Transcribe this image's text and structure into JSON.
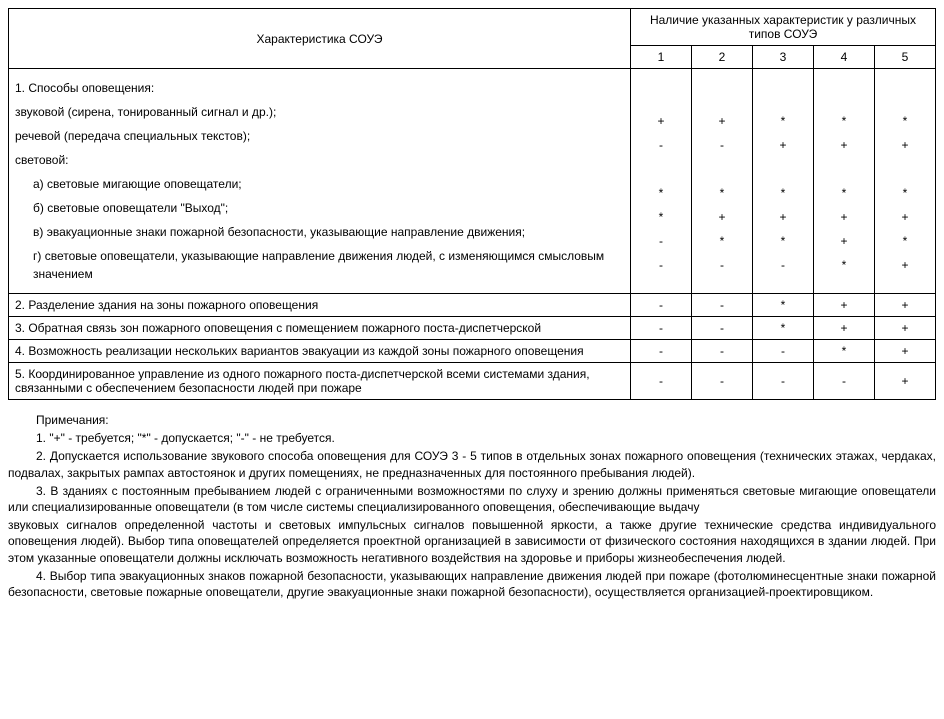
{
  "table": {
    "header_char": "Характеристика СОУЭ",
    "header_presence": "Наличие указанных характеристик у различных типов СОУЭ",
    "col_numbers": [
      "1",
      "2",
      "3",
      "4",
      "5"
    ],
    "row1_title": "1. Способы оповещения:",
    "row1_a": "звуковой (сирена, тонированный сигнал и др.);",
    "row1_a_vals": [
      "+",
      "+",
      "*",
      "*",
      "*"
    ],
    "row1_b": "речевой (передача специальных текстов);",
    "row1_b_vals": [
      "-",
      "-",
      "+",
      "+",
      "+"
    ],
    "row1_c": "световой:",
    "row1_c1": "а) световые мигающие оповещатели;",
    "row1_c1_vals": [
      "*",
      "*",
      "*",
      "*",
      "*"
    ],
    "row1_c2": "б) световые оповещатели \"Выход\";",
    "row1_c2_vals": [
      "*",
      "+",
      "+",
      "+",
      "+"
    ],
    "row1_c3": "в) эвакуационные знаки пожарной безопасности, указывающие направление движения;",
    "row1_c3_vals": [
      "-",
      "*",
      "*",
      "+",
      "*"
    ],
    "row1_c4": "г) световые оповещатели, указывающие направление движения людей, с изменяющимся смысловым значением",
    "row1_c4_vals": [
      "-",
      "-",
      "-",
      "*",
      "+"
    ],
    "row2": "2. Разделение здания на зоны пожарного оповещения",
    "row2_vals": [
      "-",
      "-",
      "*",
      "+",
      "+"
    ],
    "row3": "3. Обратная связь зон пожарного оповещения с помещением пожарного поста-диспетчерской",
    "row3_vals": [
      "-",
      "-",
      "*",
      "+",
      "+"
    ],
    "row4": "4. Возможность реализации нескольких вариантов эвакуации из каждой зоны пожарного оповещения",
    "row4_vals": [
      "-",
      "-",
      "-",
      "*",
      "+"
    ],
    "row5": "5. Координированное управление из одного пожарного поста-диспетчерской всеми системами здания, связанными с обеспечением безопасности людей при пожаре",
    "row5_vals": [
      "-",
      "-",
      "-",
      "-",
      "+"
    ]
  },
  "notes": {
    "title": "Примечания:",
    "n1": "1. \"+\" - требуется; \"*\" - допускается; \"-\" - не требуется.",
    "n2": "2. Допускается использование звукового способа оповещения для СОУЭ 3 - 5 типов в отдельных зонах пожарного оповещения (технических этажах, чердаках, подвалах, закрытых рампах автостоянок и других помещениях, не предназначенных для постоянного пребывания людей).",
    "n3a": "3. В зданиях с постоянным пребыванием людей с ограниченными возможностями по слуху и зрению должны применяться световые мигающие оповещатели или специализированные оповещатели (в том числе системы специализированного оповещения, обеспечивающие выдачу",
    "n3b": "звуковых сигналов определенной частоты и световых импульсных сигналов повышенной яркости, а также другие технические средства индивидуального оповещения людей). Выбор типа оповещателей определяется проектной организацией в зависимости от физического состояния находящихся в здании людей. При этом указанные оповещатели должны исключать возможность негативного воздействия на здоровье и приборы жизнеобеспечения людей.",
    "n4": "4. Выбор типа эвакуационных знаков пожарной безопасности, указывающих направление движения людей при пожаре (фотолюминесцентные знаки пожарной безопасности, световые пожарные оповещатели, другие эвакуационные знаки пожарной безопасности), осуществляется организацией-проектировщиком."
  }
}
